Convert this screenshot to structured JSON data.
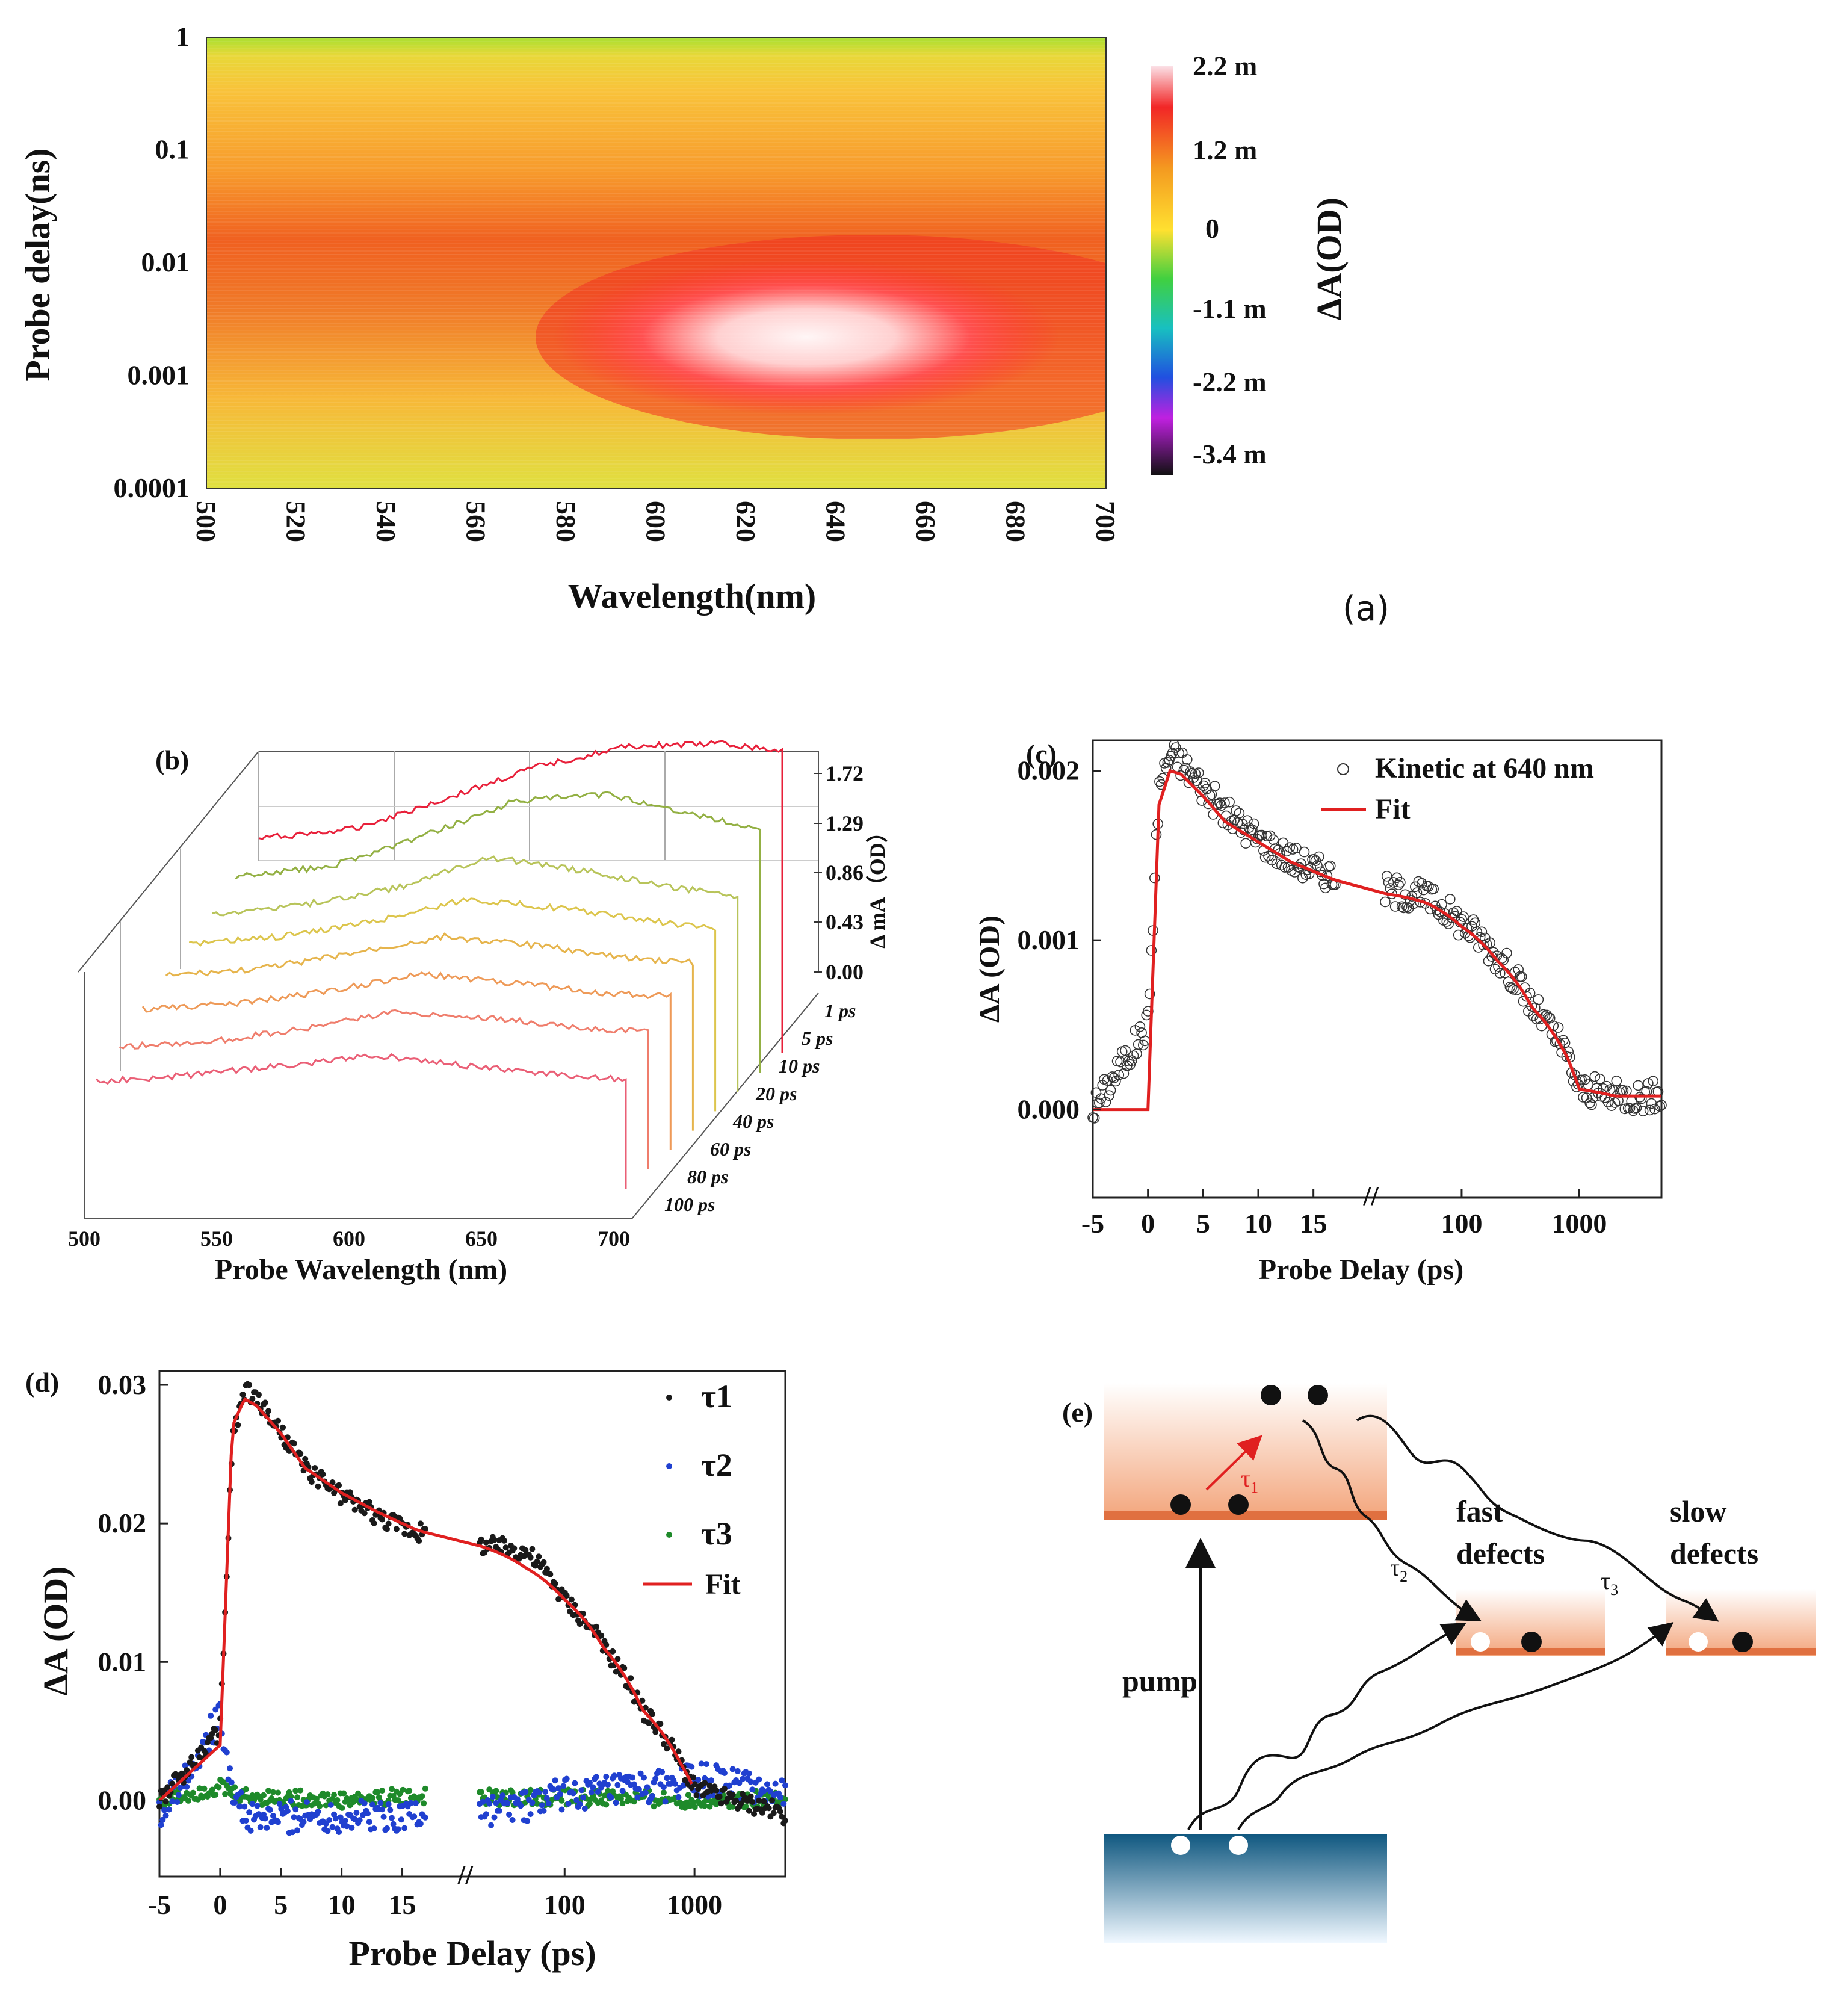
{
  "chart_data": [
    {
      "panel": "a",
      "type": "heatmap",
      "panel_label": "(a)",
      "xlabel": "Wavelength(nm)",
      "ylabel": "Probe delay(ns)",
      "x_ticks": [
        "500",
        "520",
        "540",
        "560",
        "580",
        "600",
        "620",
        "640",
        "660",
        "680",
        "700"
      ],
      "y_ticks": [
        "1",
        "0.1",
        "0.01",
        "0.001",
        "0.0001"
      ],
      "xlim": [
        500,
        700
      ],
      "ylim_log": [
        0.0001,
        1
      ],
      "colorbar": {
        "label": "ΔA(OD)",
        "ticks": [
          "2.2 m",
          "1.2 m",
          "0",
          "-1.1 m",
          "-2.2 m",
          "-3.4 m"
        ]
      },
      "peak": {
        "wavelength_nm": 640,
        "delay_ns": 0.002,
        "value": "2.2 m"
      }
    },
    {
      "panel": "b",
      "type": "line",
      "panel_label": "(b)",
      "xlabel": "Probe Wavelength (nm)",
      "zlabel": "Δ mA（OD）",
      "x_ticks": [
        "500",
        "550",
        "600",
        "650",
        "700"
      ],
      "z_ticks": [
        "1.72",
        "1.29",
        "0.86",
        "0.43",
        "0.00"
      ],
      "delays": [
        "1 ps",
        "5 ps",
        "10 ps",
        "20 ps",
        "40 ps",
        "60 ps",
        "80 ps",
        "100 ps"
      ],
      "series_colors": [
        "#e8203a",
        "#93b043",
        "#b8c45a",
        "#dcc54c",
        "#e6b44c",
        "#ee9a58",
        "#ef7d6c",
        "#ea5f76"
      ],
      "series": [
        {
          "name": "1 ps",
          "x": [
            530,
            560,
            590,
            620,
            650,
            680,
            700
          ],
          "values": [
            1.05,
            1.12,
            1.35,
            1.6,
            1.76,
            1.78,
            1.72
          ]
        },
        {
          "name": "5 ps",
          "x": [
            530,
            560,
            590,
            620,
            650,
            680,
            700
          ],
          "values": [
            0.95,
            1.02,
            1.25,
            1.52,
            1.58,
            1.42,
            1.3
          ]
        },
        {
          "name": "10 ps",
          "x": [
            530,
            560,
            590,
            620,
            650,
            680,
            700
          ],
          "values": [
            0.85,
            0.92,
            1.05,
            1.28,
            1.18,
            1.05,
            0.98
          ]
        },
        {
          "name": "20 ps",
          "x": [
            530,
            560,
            590,
            620,
            650,
            680,
            700
          ],
          "values": [
            0.8,
            0.86,
            0.98,
            1.15,
            1.08,
            0.98,
            0.92
          ]
        },
        {
          "name": "40 ps",
          "x": [
            530,
            560,
            590,
            620,
            650,
            680,
            700
          ],
          "values": [
            0.75,
            0.8,
            0.92,
            1.05,
            0.98,
            0.88,
            0.85
          ]
        },
        {
          "name": "60 ps",
          "x": [
            530,
            560,
            590,
            620,
            650,
            680,
            700
          ],
          "values": [
            0.68,
            0.72,
            0.82,
            0.95,
            0.88,
            0.8,
            0.78
          ]
        },
        {
          "name": "80 ps",
          "x": [
            530,
            560,
            590,
            620,
            650,
            680,
            700
          ],
          "values": [
            0.58,
            0.62,
            0.72,
            0.85,
            0.8,
            0.72,
            0.7
          ]
        },
        {
          "name": "100 ps",
          "x": [
            530,
            560,
            590,
            620,
            650,
            680,
            700
          ],
          "values": [
            0.5,
            0.55,
            0.62,
            0.7,
            0.62,
            0.55,
            0.52
          ]
        }
      ]
    },
    {
      "panel": "c",
      "type": "scatter",
      "panel_label": "(c)",
      "xlabel": "Probe Delay (ps)",
      "ylabel": "ΔA (OD)",
      "x_ticks": [
        "-5",
        "0",
        "5",
        "10",
        "15",
        "100",
        "1000"
      ],
      "y_ticks": [
        "0.002",
        "0.001",
        "0.000"
      ],
      "legend": [
        "Kinetic at 640 nm",
        "Fit"
      ],
      "fit_color": "#e02020",
      "series": [
        {
          "name": "Kinetic at 640 nm",
          "x": [
            -5,
            0,
            1,
            2,
            3,
            5,
            7,
            10,
            13,
            16,
            20,
            50,
            100,
            200,
            400,
            800,
            1000,
            2000,
            5000
          ],
          "values": [
            0.0,
            0.0005,
            0.0019,
            0.0021,
            0.00205,
            0.0019,
            0.00175,
            0.0016,
            0.00148,
            0.0014,
            0.0013,
            0.00125,
            0.0011,
            0.0009,
            0.0006,
            0.0003,
            0.00012,
            8e-05,
            8e-05
          ]
        },
        {
          "name": "Fit",
          "x": [
            -5,
            0,
            1,
            2,
            3,
            5,
            7,
            10,
            13,
            16,
            20,
            50,
            100,
            200,
            400,
            800,
            1000,
            2000,
            5000
          ],
          "values": [
            0.0,
            0.0,
            0.0018,
            0.002,
            0.00198,
            0.00185,
            0.0017,
            0.00158,
            0.00146,
            0.00138,
            0.00128,
            0.00122,
            0.00108,
            0.00088,
            0.0006,
            0.0003,
            0.00012,
            8e-05,
            8e-05
          ]
        }
      ]
    },
    {
      "panel": "d",
      "type": "scatter",
      "panel_label": "(d)",
      "xlabel": "Probe Delay (ps)",
      "ylabel": "ΔA (OD)",
      "x_ticks": [
        "-5",
        "0",
        "5",
        "10",
        "15",
        "100",
        "1000"
      ],
      "y_ticks": [
        "0.03",
        "0.02",
        "0.01",
        "0.00"
      ],
      "legend": [
        "τ1",
        "τ2",
        "τ3",
        "Fit"
      ],
      "colors": {
        "tau1": "#1a1a1a",
        "tau2": "#2040d0",
        "tau3": "#1e8a2a",
        "fit": "#e02020"
      },
      "series": [
        {
          "name": "τ1",
          "x": [
            -5,
            0,
            1,
            2,
            3,
            5,
            7,
            10,
            13,
            16,
            20,
            50,
            100,
            200,
            400,
            800,
            1000,
            2000,
            5000
          ],
          "values": [
            0.0,
            0.005,
            0.026,
            0.0295,
            0.029,
            0.0265,
            0.024,
            0.022,
            0.0205,
            0.0195,
            0.0185,
            0.018,
            0.0145,
            0.011,
            0.0065,
            0.0025,
            0.0008,
            0.0,
            -0.001
          ]
        },
        {
          "name": "τ2",
          "x": [
            -5,
            0,
            1,
            2,
            3,
            5,
            10,
            15,
            20,
            100,
            1000,
            5000
          ],
          "values": [
            -0.001,
            0.006,
            0.001,
            -0.0012,
            -0.0015,
            -0.0012,
            -0.0012,
            -0.001,
            -0.0008,
            0.0005,
            0.0015,
            0.0005
          ]
        },
        {
          "name": "τ3",
          "x": [
            -5,
            0,
            1,
            2,
            5,
            10,
            15,
            20,
            100,
            1000,
            5000
          ],
          "values": [
            0.0,
            0.001,
            0.0005,
            0.0003,
            0.0002,
            0.0,
            0.0003,
            0.0002,
            0.0002,
            0.0,
            0.0003
          ]
        },
        {
          "name": "Fit",
          "x": [
            -5,
            0,
            1,
            2,
            3,
            5,
            7,
            10,
            13,
            16,
            20,
            50,
            100,
            200,
            400,
            800,
            1000
          ],
          "values": [
            0.0,
            0.004,
            0.027,
            0.029,
            0.0285,
            0.0265,
            0.024,
            0.0222,
            0.0208,
            0.0196,
            0.0185,
            0.0168,
            0.0145,
            0.011,
            0.0065,
            0.0025,
            0.0008
          ]
        }
      ]
    }
  ],
  "diagram_e": {
    "panel_label": "(e)",
    "pump": "pump",
    "fast_label": "fast",
    "defects_label": "defects",
    "slow_label": "slow",
    "tau1": "τ",
    "tau1_sub": "1",
    "tau2": "τ",
    "tau2_sub": "2",
    "tau3": "τ",
    "tau3_sub": "3"
  }
}
